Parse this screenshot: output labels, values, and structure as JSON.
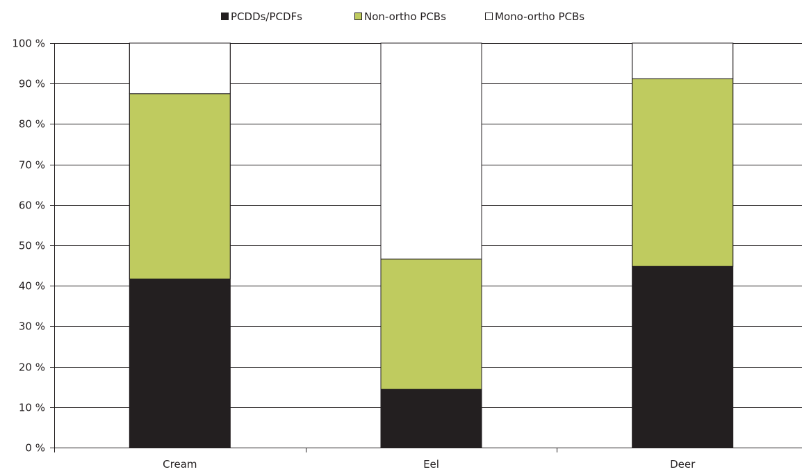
{
  "chart_data": {
    "type": "bar",
    "stacked": true,
    "categories": [
      "Cream",
      "Eel",
      "Deer"
    ],
    "series": [
      {
        "name": "PCDDs/PCDFs",
        "color": "#231f20",
        "values": [
          41.7,
          14.4,
          44.8
        ]
      },
      {
        "name": "Non-ortho PCBs",
        "color": "#bfcb5f",
        "values": [
          45.8,
          32.2,
          46.4
        ]
      },
      {
        "name": "Mono-ortho PCBs",
        "color": "#ffffff",
        "values": [
          12.5,
          53.4,
          8.8
        ]
      }
    ],
    "y_ticks": [
      "0 %",
      "10 %",
      "20 %",
      "30 %",
      "40 %",
      "50 %",
      "60 %",
      "70 %",
      "80 %",
      "90 %",
      "100 %"
    ],
    "ylim": [
      0,
      100
    ],
    "grid": true,
    "legend_position": "top-center"
  }
}
